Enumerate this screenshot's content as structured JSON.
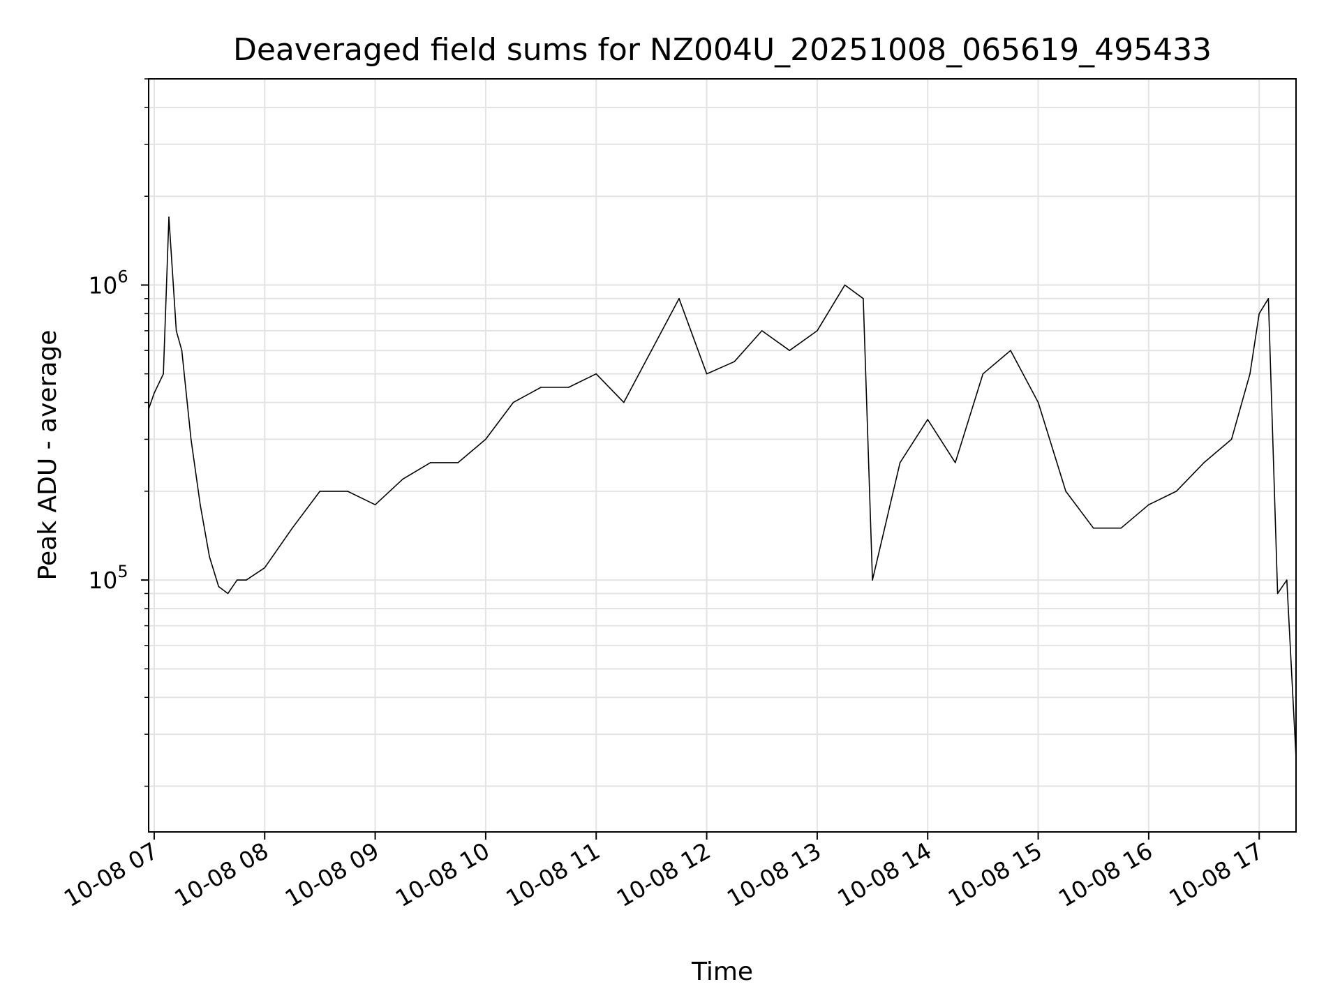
{
  "chart_data": {
    "type": "line",
    "title": "Deaveraged field sums for NZ004U_20251008_065619_495433",
    "xlabel": "Time",
    "ylabel": "Peak ADU - average",
    "yscale": "log",
    "ylim": [
      14000,
      5000000
    ],
    "xlim": [
      "2025-10-08 06:57",
      "2025-10-08 17:20"
    ],
    "grid": true,
    "xticks": [
      "10-08 07",
      "10-08 08",
      "10-08 09",
      "10-08 10",
      "10-08 11",
      "10-08 12",
      "10-08 13",
      "10-08 14",
      "10-08 15",
      "10-08 16",
      "10-08 17"
    ],
    "yticks": [
      {
        "value": 100000,
        "base": "10",
        "exp": "5"
      },
      {
        "value": 1000000,
        "base": "10",
        "exp": "6"
      }
    ],
    "series": [
      {
        "color": "#000000",
        "x": [
          "2025-10-08 06:57",
          "2025-10-08 07:00",
          "2025-10-08 07:05",
          "2025-10-08 07:08",
          "2025-10-08 07:12",
          "2025-10-08 07:15",
          "2025-10-08 07:20",
          "2025-10-08 07:25",
          "2025-10-08 07:30",
          "2025-10-08 07:35",
          "2025-10-08 07:40",
          "2025-10-08 07:45",
          "2025-10-08 07:50",
          "2025-10-08 08:00",
          "2025-10-08 08:15",
          "2025-10-08 08:30",
          "2025-10-08 08:45",
          "2025-10-08 09:00",
          "2025-10-08 09:15",
          "2025-10-08 09:30",
          "2025-10-08 09:45",
          "2025-10-08 10:00",
          "2025-10-08 10:15",
          "2025-10-08 10:30",
          "2025-10-08 10:45",
          "2025-10-08 11:00",
          "2025-10-08 11:15",
          "2025-10-08 11:30",
          "2025-10-08 11:45",
          "2025-10-08 12:00",
          "2025-10-08 12:15",
          "2025-10-08 12:30",
          "2025-10-08 12:45",
          "2025-10-08 13:00",
          "2025-10-08 13:15",
          "2025-10-08 13:25",
          "2025-10-08 13:30",
          "2025-10-08 13:45",
          "2025-10-08 14:00",
          "2025-10-08 14:15",
          "2025-10-08 14:30",
          "2025-10-08 14:45",
          "2025-10-08 15:00",
          "2025-10-08 15:15",
          "2025-10-08 15:30",
          "2025-10-08 15:45",
          "2025-10-08 16:00",
          "2025-10-08 16:15",
          "2025-10-08 16:30",
          "2025-10-08 16:45",
          "2025-10-08 16:55",
          "2025-10-08 17:00",
          "2025-10-08 17:05",
          "2025-10-08 17:10",
          "2025-10-08 17:15",
          "2025-10-08 17:20"
        ],
        "values": [
          380000,
          430000,
          500000,
          1700000,
          700000,
          600000,
          300000,
          180000,
          120000,
          95000,
          90000,
          100000,
          100000,
          110000,
          150000,
          200000,
          200000,
          180000,
          220000,
          250000,
          250000,
          300000,
          400000,
          450000,
          450000,
          500000,
          400000,
          600000,
          900000,
          500000,
          550000,
          700000,
          600000,
          700000,
          1000000,
          900000,
          100000,
          250000,
          350000,
          250000,
          500000,
          600000,
          400000,
          200000,
          150000,
          150000,
          180000,
          200000,
          250000,
          300000,
          500000,
          800000,
          900000,
          90000,
          100000,
          25000
        ]
      }
    ]
  }
}
